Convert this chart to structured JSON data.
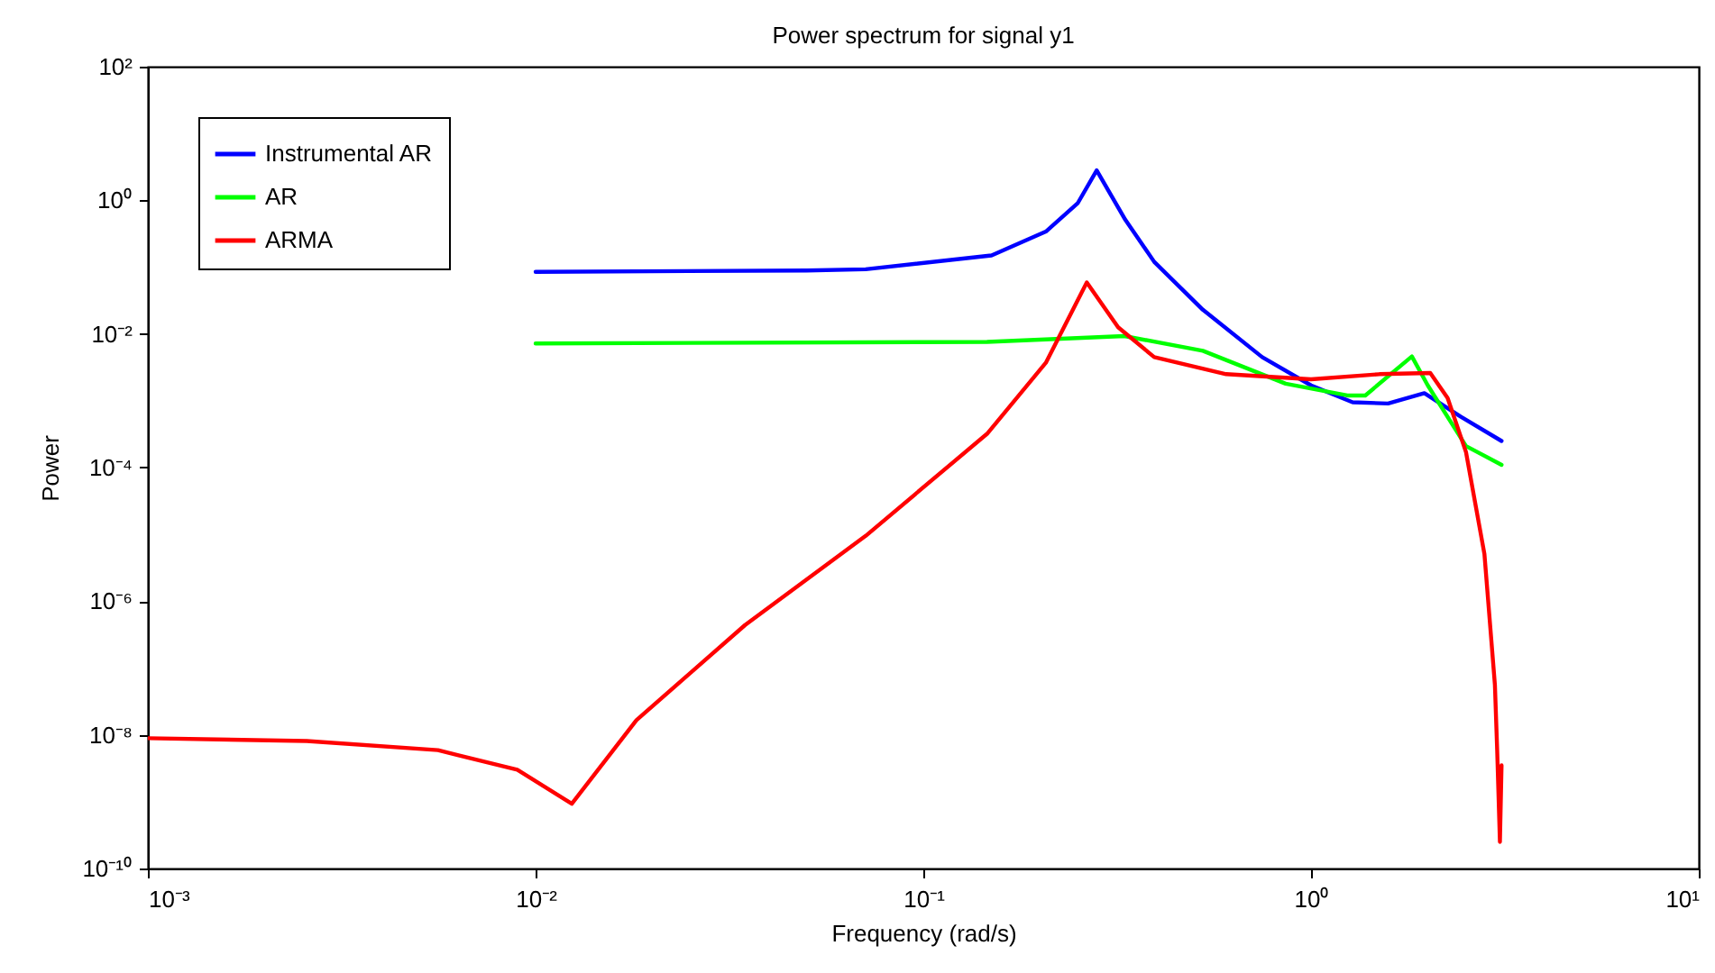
{
  "chart_data": {
    "type": "line",
    "title": "Power spectrum for signal y1",
    "xlabel": "Frequency (rad/s)",
    "ylabel": "Power",
    "log": "xy",
    "legend": "top left",
    "xlim": [
      0.001,
      10
    ],
    "ylim": [
      1e-10,
      100
    ],
    "xticks": [
      {
        "value": 0.001,
        "label": "10⁻³"
      },
      {
        "value": 0.01,
        "label": "10⁻²"
      },
      {
        "value": 0.1,
        "label": "10⁻¹"
      },
      {
        "value": 1,
        "label": "10⁰"
      },
      {
        "value": 10,
        "label": "10¹"
      }
    ],
    "yticks": [
      {
        "value": 1e-10,
        "label": "10⁻¹⁰"
      },
      {
        "value": 1e-08,
        "label": "10⁻⁸"
      },
      {
        "value": 1e-06,
        "label": "10⁻⁶"
      },
      {
        "value": 0.0001,
        "label": "10⁻⁴"
      },
      {
        "value": 0.01,
        "label": "10⁻²"
      },
      {
        "value": 1,
        "label": "10⁰"
      },
      {
        "value": 100,
        "label": "10²"
      }
    ],
    "series": [
      {
        "name": "Instrumental AR",
        "color": "#0000ff",
        "x": [
          0.01,
          0.05,
          0.071,
          0.15,
          0.207,
          0.25,
          0.28,
          0.332,
          0.394,
          0.526,
          0.748,
          1.0,
          1.28,
          1.58,
          1.96,
          2.43,
          3.1
        ],
        "values": [
          0.085,
          0.089,
          0.093,
          0.15,
          0.34,
          0.9,
          2.8,
          0.51,
          0.12,
          0.023,
          0.0045,
          0.0017,
          0.00095,
          0.00091,
          0.0013,
          0.00058,
          0.00025
        ]
      },
      {
        "name": "AR",
        "color": "#00ff00",
        "x": [
          0.01,
          0.146,
          0.33,
          0.526,
          0.86,
          1.24,
          1.38,
          1.82,
          2.0,
          2.51,
          3.1
        ],
        "values": [
          0.0072,
          0.0076,
          0.0093,
          0.0056,
          0.0018,
          0.0012,
          0.0012,
          0.0046,
          0.0017,
          0.00021,
          0.00011
        ]
      },
      {
        "name": "ARMA",
        "color": "#ff0000",
        "x": [
          0.001,
          0.00257,
          0.0056,
          0.00897,
          0.0124,
          0.0182,
          0.0347,
          0.071,
          0.146,
          0.207,
          0.264,
          0.318,
          0.394,
          0.604,
          1.0,
          1.5,
          2.03,
          2.25,
          2.51,
          2.8,
          2.98,
          3.02,
          3.07,
          3.1
        ],
        "values": [
          8.9e-09,
          8.1e-09,
          5.9e-09,
          3e-09,
          9.3e-10,
          1.66e-08,
          4.4e-07,
          9.5e-06,
          0.00032,
          0.0037,
          0.059,
          0.0126,
          0.0045,
          0.0025,
          0.0021,
          0.0025,
          0.0026,
          0.0011,
          0.00017,
          5.1e-06,
          5.6e-08,
          6e-09,
          2.5e-10,
          3.5e-09
        ]
      }
    ]
  }
}
